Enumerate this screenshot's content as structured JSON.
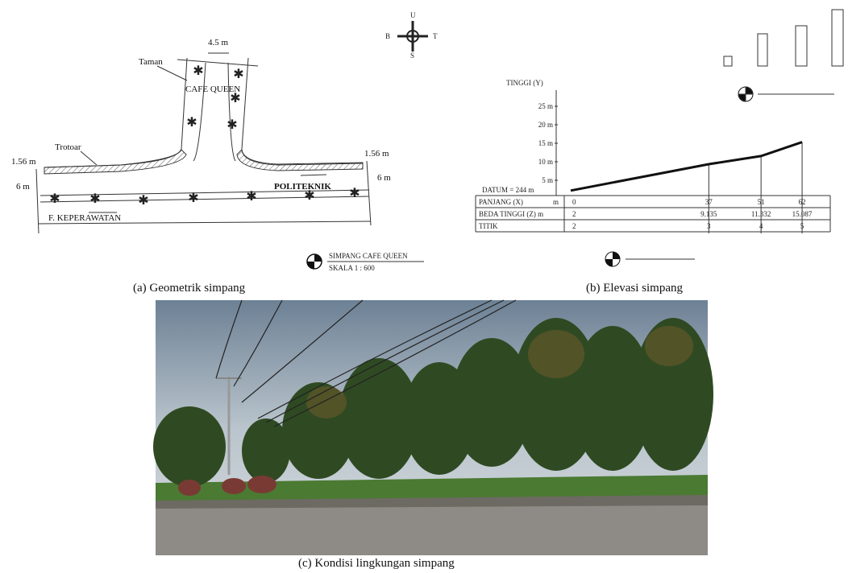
{
  "panel_a": {
    "width_label": "4.5 m",
    "taman": "Taman",
    "cafe": "CAFE QUEEN",
    "trotoar": "Trotoar",
    "left_side": "1.56 m",
    "left_lane": "6 m",
    "right_side": "1.56 m",
    "right_lane": "6 m",
    "north_road": "POLITEKNIK",
    "south_road": "F. KEPERAWATAN",
    "compass": {
      "n": "U",
      "w": "B",
      "e": "T",
      "s": "S"
    },
    "legend_title": "SIMPANG CAFE QUEEN",
    "legend_scale": "SKALA 1 : 600",
    "caption": "(a)  Geometrik simpang"
  },
  "panel_b": {
    "y_title": "TINGGI (Y)",
    "y_labels": [
      "25 m",
      "20 m",
      "15 m",
      "10 m",
      "5 m"
    ],
    "datum": "DATUM = 244 m",
    "table": {
      "row_labels": [
        "PANJANG (X)",
        "BEDA TINGGI (Z) m",
        "TITIK"
      ],
      "unit": "m",
      "panjang": [
        0,
        37,
        51,
        62
      ],
      "beda_tinggi": [
        2,
        9.135,
        11.332,
        15.087
      ],
      "titik": [
        2,
        3,
        4,
        5
      ]
    },
    "caption": "(b)  Elevasi simpang"
  },
  "panel_c": {
    "caption": "(c)  Kondisi lingkungan simpang"
  }
}
